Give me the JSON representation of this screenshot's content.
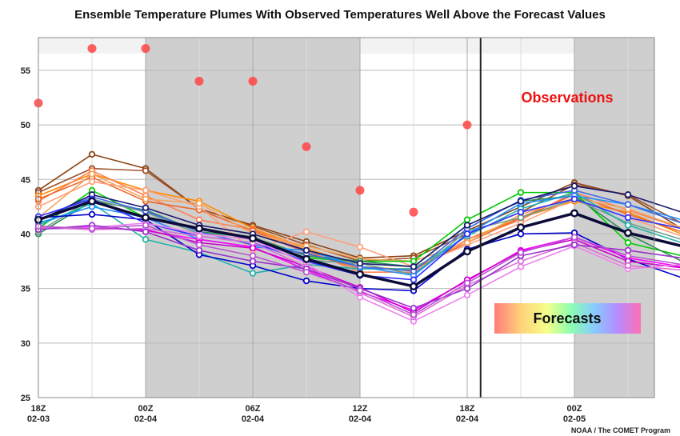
{
  "chart_data": {
    "type": "line",
    "title": "Ensemble Temperature Plumes With Observed Temperatures Well Above the Forecast Values",
    "xlabel": "",
    "ylabel": "",
    "ylim": [
      25,
      58
    ],
    "yticks": [
      25,
      30,
      35,
      40,
      45,
      50,
      55
    ],
    "grid": true,
    "x": [
      "02-03 18Z",
      "02-03 21Z",
      "02-04 00Z",
      "02-04 03Z",
      "02-04 06Z",
      "02-04 09Z",
      "02-04 12Z",
      "02-04 15Z",
      "02-04 18Z",
      "02-04 21Z",
      "02-05 00Z",
      "02-05 03Z",
      "02-05 06Z"
    ],
    "xticks": [
      {
        "index": 0,
        "line1": "18Z",
        "line2": "02-03"
      },
      {
        "index": 2,
        "line1": "00Z",
        "line2": "02-04"
      },
      {
        "index": 4,
        "line1": "06Z",
        "line2": "02-04"
      },
      {
        "index": 6,
        "line1": "12Z",
        "line2": "02-04"
      },
      {
        "index": 8,
        "line1": "18Z",
        "line2": "02-04"
      },
      {
        "index": 10,
        "line1": "00Z",
        "line2": "02-05"
      }
    ],
    "night_shading": [
      [
        2,
        6
      ],
      [
        10,
        11.5
      ]
    ],
    "current_time_index": 8.25,
    "observations": {
      "label": "Observations",
      "color": "#ff4444",
      "points": [
        [
          0,
          52
        ],
        [
          1,
          57
        ],
        [
          2,
          57
        ],
        [
          3,
          54
        ],
        [
          4,
          54
        ],
        [
          5,
          48
        ],
        [
          6,
          44
        ],
        [
          7,
          42
        ],
        [
          8,
          50
        ]
      ]
    },
    "forecasts_label": "Forecasts",
    "series": [
      {
        "color": "#8b4513",
        "values": [
          44.0,
          47.3,
          46.0,
          42.3,
          40.8,
          39.3,
          37.8,
          38.0,
          40.3,
          42.5,
          44.7,
          43.5,
          40.5
        ]
      },
      {
        "color": "#a0522d",
        "values": [
          43.8,
          46.0,
          45.8,
          42.3,
          40.7,
          39.0,
          37.5,
          37.8,
          40.0,
          42.0,
          44.5,
          43.6,
          41.0
        ]
      },
      {
        "color": "#ff8c00",
        "values": [
          43.5,
          45.5,
          44.0,
          43.0,
          40.5,
          38.7,
          37.0,
          36.7,
          39.5,
          41.5,
          43.0,
          42.0,
          40.0
        ]
      },
      {
        "color": "#ff7f50",
        "values": [
          43.0,
          45.8,
          43.5,
          41.3,
          40.4,
          38.5,
          36.5,
          36.5,
          39.5,
          41.3,
          43.8,
          42.2,
          40.5
        ]
      },
      {
        "color": "#e9692c",
        "values": [
          43.2,
          45.2,
          43.0,
          42.2,
          40.3,
          38.3,
          36.8,
          36.8,
          39.2,
          41.5,
          43.6,
          41.8,
          40.2
        ]
      },
      {
        "color": "#ffa07a",
        "values": [
          42.5,
          44.8,
          44.0,
          42.5,
          38.5,
          40.2,
          38.8,
          37.0,
          39.0,
          41.0,
          43.2,
          41.5,
          39.8
        ]
      },
      {
        "color": "#f4a460",
        "values": [
          41.5,
          45.5,
          43.2,
          42.8,
          40.0,
          38.9,
          37.7,
          37.5,
          39.2,
          41.8,
          43.3,
          42.3,
          40.6
        ]
      },
      {
        "color": "#00cc00",
        "values": [
          40.5,
          44.0,
          41.5,
          40.5,
          39.5,
          37.8,
          37.5,
          37.5,
          41.3,
          43.8,
          43.8,
          39.2,
          38.0
        ]
      },
      {
        "color": "#2e8b57",
        "values": [
          40.0,
          43.0,
          42.2,
          40.2,
          39.7,
          38.0,
          37.5,
          37.0,
          40.8,
          43.0,
          43.5,
          40.0,
          37.5
        ]
      },
      {
        "color": "#6f9f86",
        "values": [
          40.2,
          43.2,
          42.0,
          40.0,
          39.8,
          37.6,
          37.3,
          36.3,
          40.3,
          41.5,
          43.2,
          41.0,
          39.5
        ]
      },
      {
        "color": "#20b2aa",
        "values": [
          40.8,
          42.8,
          39.5,
          38.3,
          36.4,
          37.2,
          36.8,
          36.8,
          39.8,
          42.3,
          43.8,
          40.8,
          39.2
        ]
      },
      {
        "color": "#1e90ff",
        "values": [
          41.0,
          42.5,
          41.5,
          39.5,
          38.8,
          38.5,
          37.0,
          36.2,
          40.0,
          42.8,
          43.5,
          42.7,
          41.3
        ]
      },
      {
        "color": "#4169e1",
        "values": [
          41.3,
          43.4,
          42.1,
          40.2,
          39.0,
          38.2,
          37.0,
          36.6,
          40.5,
          43.1,
          44.0,
          42.7,
          41.0
        ]
      },
      {
        "color": "#0000cd",
        "values": [
          41.5,
          41.8,
          41.3,
          38.1,
          37.1,
          35.7,
          35.0,
          34.8,
          38.6,
          40.0,
          40.1,
          37.7,
          36.0
        ]
      },
      {
        "color": "#191970",
        "values": [
          41.2,
          43.6,
          42.4,
          40.8,
          40.0,
          38.5,
          37.3,
          37.0,
          40.8,
          43.0,
          44.4,
          43.6,
          42.0
        ]
      },
      {
        "color": "#3232ff",
        "values": [
          41.6,
          43.2,
          41.0,
          39.8,
          39.2,
          37.5,
          36.2,
          35.8,
          40.0,
          42.0,
          43.2,
          41.5,
          40.5
        ]
      },
      {
        "color": "#ff00ff",
        "values": [
          40.5,
          40.7,
          40.3,
          39.5,
          38.8,
          36.7,
          34.7,
          33.0,
          35.7,
          38.5,
          39.7,
          37.8,
          37.0
        ]
      },
      {
        "color": "#cc00cc",
        "values": [
          40.5,
          40.5,
          40.4,
          39.2,
          38.7,
          37.0,
          35.1,
          32.8,
          35.8,
          38.4,
          39.5,
          37.5,
          36.9
        ]
      },
      {
        "color": "#ee82ee",
        "values": [
          40.5,
          40.6,
          41.0,
          40.0,
          39.5,
          37.3,
          34.2,
          32.0,
          34.4,
          37.0,
          38.9,
          36.8,
          37.2
        ]
      },
      {
        "color": "#da70d6",
        "values": [
          40.6,
          40.4,
          40.5,
          39.8,
          39.2,
          37.0,
          34.6,
          32.4,
          35.3,
          37.5,
          39.2,
          37.1,
          36.7
        ]
      },
      {
        "color": "#9932cc",
        "values": [
          40.4,
          40.8,
          40.2,
          38.5,
          37.5,
          36.8,
          35.0,
          33.2,
          35.0,
          38.0,
          39.0,
          38.5,
          37.8
        ]
      },
      {
        "color": "#ba55d3",
        "values": [
          40.7,
          40.5,
          40.8,
          39.0,
          38.0,
          36.5,
          34.8,
          32.6,
          35.5,
          38.3,
          39.7,
          38.0,
          37.2
        ]
      },
      {
        "color": "#0b0b3a",
        "values": [
          41.3,
          43.0,
          41.5,
          40.5,
          39.6,
          37.7,
          36.3,
          35.2,
          38.4,
          40.6,
          41.9,
          40.1,
          38.9
        ]
      }
    ]
  },
  "credit": "NOAA / The COMET Program"
}
